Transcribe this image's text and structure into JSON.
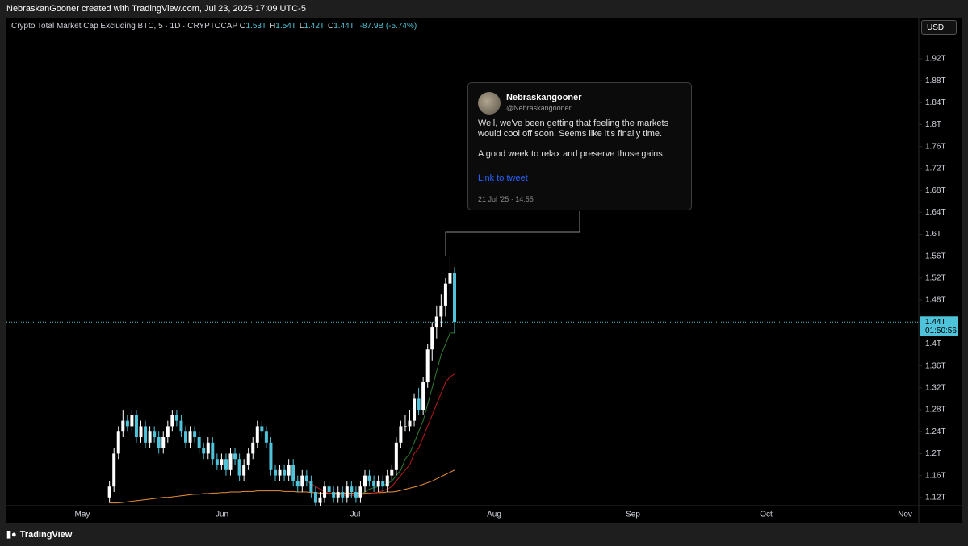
{
  "header": {
    "caption": "NebraskanGooner created with TradingView.com, Jul 23, 2025 17:09 UTC-5"
  },
  "footer": {
    "brand": "TradingView"
  },
  "currency_button": "USD",
  "tweet": {
    "author": "Nebraskangooner",
    "handle": "@Nebraskangooner",
    "paragraphs": [
      "Well, we've been getting that feeling the markets would cool off soon. Seems like it's finally time.",
      "A good week to relax and preserve those gains."
    ],
    "link": "Link to tweet",
    "date": "21 Jul '25 · 14:55"
  },
  "chart_data": {
    "type": "candlestick",
    "title": "Crypto Total Market Cap Excluding BTC, 5 · 1D · CRYPTOCAP",
    "ohlc_legend": [
      {
        "key": "O",
        "value": "1.53T"
      },
      {
        "key": "H",
        "value": "1.54T"
      },
      {
        "key": "L",
        "value": "1.42T"
      },
      {
        "key": "C",
        "value": "1.44T"
      }
    ],
    "change": "-87.9B (-5.74%)",
    "up_color": "#ffffff",
    "down_color": "#4fc3d9",
    "candles": [
      [
        1.12,
        1.15,
        1.11,
        1.14
      ],
      [
        1.14,
        1.21,
        1.13,
        1.2
      ],
      [
        1.2,
        1.25,
        1.19,
        1.24
      ],
      [
        1.24,
        1.28,
        1.23,
        1.26
      ],
      [
        1.26,
        1.27,
        1.24,
        1.25
      ],
      [
        1.25,
        1.28,
        1.24,
        1.27
      ],
      [
        1.27,
        1.28,
        1.22,
        1.23
      ],
      [
        1.23,
        1.26,
        1.22,
        1.25
      ],
      [
        1.25,
        1.26,
        1.21,
        1.22
      ],
      [
        1.22,
        1.25,
        1.21,
        1.24
      ],
      [
        1.24,
        1.25,
        1.22,
        1.23
      ],
      [
        1.23,
        1.24,
        1.2,
        1.21
      ],
      [
        1.21,
        1.24,
        1.2,
        1.23
      ],
      [
        1.23,
        1.26,
        1.22,
        1.25
      ],
      [
        1.25,
        1.28,
        1.24,
        1.27
      ],
      [
        1.27,
        1.28,
        1.25,
        1.26
      ],
      [
        1.26,
        1.27,
        1.23,
        1.24
      ],
      [
        1.24,
        1.25,
        1.21,
        1.22
      ],
      [
        1.22,
        1.25,
        1.21,
        1.24
      ],
      [
        1.24,
        1.25,
        1.22,
        1.23
      ],
      [
        1.23,
        1.24,
        1.2,
        1.21
      ],
      [
        1.21,
        1.22,
        1.19,
        1.2
      ],
      [
        1.2,
        1.23,
        1.19,
        1.22
      ],
      [
        1.22,
        1.23,
        1.18,
        1.19
      ],
      [
        1.19,
        1.2,
        1.17,
        1.18
      ],
      [
        1.18,
        1.2,
        1.17,
        1.19
      ],
      [
        1.19,
        1.2,
        1.16,
        1.17
      ],
      [
        1.17,
        1.21,
        1.16,
        1.2
      ],
      [
        1.2,
        1.21,
        1.18,
        1.19
      ],
      [
        1.19,
        1.2,
        1.15,
        1.16
      ],
      [
        1.16,
        1.19,
        1.15,
        1.18
      ],
      [
        1.18,
        1.21,
        1.17,
        1.2
      ],
      [
        1.2,
        1.23,
        1.19,
        1.22
      ],
      [
        1.22,
        1.26,
        1.21,
        1.25
      ],
      [
        1.25,
        1.26,
        1.23,
        1.24
      ],
      [
        1.24,
        1.25,
        1.21,
        1.22
      ],
      [
        1.22,
        1.23,
        1.16,
        1.17
      ],
      [
        1.17,
        1.18,
        1.15,
        1.16
      ],
      [
        1.16,
        1.18,
        1.15,
        1.17
      ],
      [
        1.17,
        1.18,
        1.15,
        1.16
      ],
      [
        1.16,
        1.19,
        1.15,
        1.18
      ],
      [
        1.18,
        1.19,
        1.14,
        1.15
      ],
      [
        1.15,
        1.16,
        1.13,
        1.14
      ],
      [
        1.14,
        1.17,
        1.13,
        1.16
      ],
      [
        1.16,
        1.17,
        1.14,
        1.15
      ],
      [
        1.15,
        1.16,
        1.12,
        1.13
      ],
      [
        1.13,
        1.14,
        1.1,
        1.11
      ],
      [
        1.11,
        1.13,
        1.1,
        1.12
      ],
      [
        1.12,
        1.15,
        1.11,
        1.14
      ],
      [
        1.14,
        1.15,
        1.12,
        1.13
      ],
      [
        1.13,
        1.14,
        1.11,
        1.12
      ],
      [
        1.12,
        1.14,
        1.11,
        1.13
      ],
      [
        1.13,
        1.14,
        1.11,
        1.12
      ],
      [
        1.12,
        1.15,
        1.11,
        1.14
      ],
      [
        1.14,
        1.15,
        1.12,
        1.13
      ],
      [
        1.13,
        1.14,
        1.11,
        1.12
      ],
      [
        1.12,
        1.15,
        1.11,
        1.14
      ],
      [
        1.14,
        1.17,
        1.13,
        1.16
      ],
      [
        1.16,
        1.17,
        1.14,
        1.15
      ],
      [
        1.15,
        1.16,
        1.13,
        1.14
      ],
      [
        1.14,
        1.16,
        1.13,
        1.15
      ],
      [
        1.15,
        1.16,
        1.13,
        1.14
      ],
      [
        1.14,
        1.17,
        1.13,
        1.16
      ],
      [
        1.16,
        1.18,
        1.15,
        1.17
      ],
      [
        1.17,
        1.23,
        1.16,
        1.22
      ],
      [
        1.22,
        1.26,
        1.21,
        1.25
      ],
      [
        1.25,
        1.27,
        1.24,
        1.25
      ],
      [
        1.25,
        1.28,
        1.24,
        1.26
      ],
      [
        1.26,
        1.31,
        1.25,
        1.3
      ],
      [
        1.3,
        1.32,
        1.27,
        1.28
      ],
      [
        1.28,
        1.34,
        1.27,
        1.33
      ],
      [
        1.33,
        1.4,
        1.32,
        1.39
      ],
      [
        1.39,
        1.44,
        1.37,
        1.43
      ],
      [
        1.43,
        1.47,
        1.41,
        1.45
      ],
      [
        1.45,
        1.49,
        1.43,
        1.47
      ],
      [
        1.47,
        1.52,
        1.45,
        1.51
      ],
      [
        1.51,
        1.56,
        1.49,
        1.53
      ],
      [
        1.53,
        1.54,
        1.42,
        1.44
      ]
    ],
    "series": [
      {
        "color": "#e8913a",
        "values": [
          1.11,
          1.11,
          1.11,
          1.111,
          1.112,
          1.113,
          1.114,
          1.115,
          1.116,
          1.117,
          1.118,
          1.119,
          1.12,
          1.12,
          1.121,
          1.122,
          1.123,
          1.124,
          1.125,
          1.126,
          1.126,
          1.127,
          1.127,
          1.128,
          1.128,
          1.129,
          1.129,
          1.13,
          1.13,
          1.13,
          1.131,
          1.131,
          1.131,
          1.132,
          1.132,
          1.132,
          1.132,
          1.132,
          1.132,
          1.131,
          1.131,
          1.131,
          1.13,
          1.13,
          1.13,
          1.129,
          1.129,
          1.128,
          1.128,
          1.128,
          1.128,
          1.128,
          1.128,
          1.128,
          1.128,
          1.128,
          1.128,
          1.128,
          1.128,
          1.128,
          1.129,
          1.129,
          1.13,
          1.13,
          1.131,
          1.133,
          1.135,
          1.137,
          1.139,
          1.141,
          1.144,
          1.147,
          1.15,
          1.154,
          1.158,
          1.162,
          1.166,
          1.17
        ]
      },
      {
        "color": "#b71c1c",
        "values": [
          null,
          null,
          null,
          null,
          null,
          null,
          null,
          null,
          null,
          null,
          null,
          null,
          null,
          null,
          null,
          null,
          null,
          null,
          null,
          null,
          null,
          null,
          null,
          null,
          null,
          null,
          null,
          null,
          null,
          null,
          null,
          null,
          null,
          null,
          null,
          null,
          null,
          null,
          null,
          null,
          null,
          null,
          null,
          null,
          1.15,
          1.145,
          1.14,
          1.135,
          1.13,
          1.128,
          1.126,
          1.125,
          1.124,
          1.124,
          1.124,
          1.124,
          1.125,
          1.126,
          1.127,
          1.128,
          1.13,
          1.132,
          1.135,
          1.14,
          1.15,
          1.16,
          1.17,
          1.18,
          1.2,
          1.21,
          1.23,
          1.25,
          1.27,
          1.29,
          1.31,
          1.33,
          1.34,
          1.345
        ]
      },
      {
        "color": "#2e7d32",
        "values": [
          null,
          null,
          null,
          null,
          null,
          null,
          null,
          null,
          null,
          null,
          null,
          null,
          null,
          null,
          null,
          null,
          null,
          null,
          null,
          null,
          null,
          null,
          null,
          null,
          null,
          null,
          null,
          null,
          null,
          null,
          null,
          null,
          null,
          null,
          null,
          null,
          null,
          null,
          null,
          null,
          null,
          null,
          null,
          null,
          null,
          null,
          null,
          null,
          null,
          null,
          null,
          null,
          null,
          null,
          null,
          1.12,
          1.125,
          1.13,
          1.135,
          1.138,
          1.14,
          1.142,
          1.145,
          1.15,
          1.16,
          1.17,
          1.19,
          1.2,
          1.22,
          1.24,
          1.26,
          1.29,
          1.32,
          1.35,
          1.38,
          1.4,
          1.42,
          1.42
        ]
      }
    ],
    "last_price": {
      "value": 1.44,
      "label": "1.44T"
    },
    "countdown": "01:50:56",
    "xticks": [
      "May",
      "Jun",
      "Jul",
      "Aug",
      "Sep",
      "Oct",
      "Nov"
    ],
    "ylim": [
      1.105,
      1.995
    ],
    "yticks": [
      {
        "value": 1.12,
        "label": "1.12T"
      },
      {
        "value": 1.16,
        "label": "1.16T"
      },
      {
        "value": 1.2,
        "label": "1.2T"
      },
      {
        "value": 1.24,
        "label": "1.24T"
      },
      {
        "value": 1.28,
        "label": "1.28T"
      },
      {
        "value": 1.32,
        "label": "1.32T"
      },
      {
        "value": 1.36,
        "label": "1.36T"
      },
      {
        "value": 1.4,
        "label": "1.4T"
      },
      {
        "value": 1.44,
        "label": "1.44T"
      },
      {
        "value": 1.48,
        "label": "1.48T"
      },
      {
        "value": 1.52,
        "label": "1.52T"
      },
      {
        "value": 1.56,
        "label": "1.56T"
      },
      {
        "value": 1.6,
        "label": "1.6T"
      },
      {
        "value": 1.64,
        "label": "1.64T"
      },
      {
        "value": 1.68,
        "label": "1.68T"
      },
      {
        "value": 1.72,
        "label": "1.72T"
      },
      {
        "value": 1.76,
        "label": "1.76T"
      },
      {
        "value": 1.8,
        "label": "1.8T"
      },
      {
        "value": 1.84,
        "label": "1.84T"
      },
      {
        "value": 1.88,
        "label": "1.88T"
      },
      {
        "value": 1.92,
        "label": "1.92T"
      }
    ],
    "grid": false
  }
}
